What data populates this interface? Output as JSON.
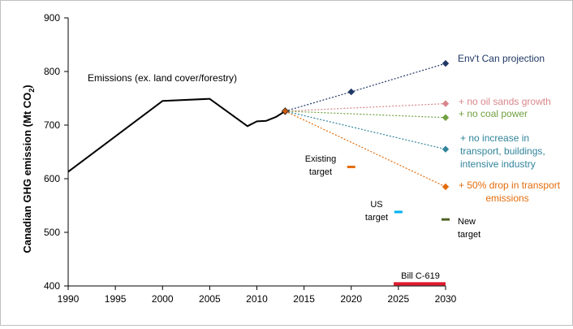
{
  "chart_data": {
    "type": "line",
    "xlabel": "",
    "ylabel": "Canadian GHG emission (Mt CO",
    "ylabel_sub": "2",
    "ylabel_end": ")",
    "xlim": [
      1990,
      2030
    ],
    "ylim": [
      400,
      900
    ],
    "x_ticks": [
      1990,
      1995,
      2000,
      2005,
      2010,
      2015,
      2020,
      2025,
      2030
    ],
    "y_ticks": [
      400,
      500,
      600,
      700,
      800,
      900
    ],
    "grid": false,
    "historical": {
      "label": "Emissions  (ex. land cover/forestry)",
      "color": "#000000",
      "points": [
        [
          1990,
          613
        ],
        [
          2000,
          745
        ],
        [
          2005,
          749
        ],
        [
          2009,
          698
        ],
        [
          2010,
          707
        ],
        [
          2011,
          708
        ],
        [
          2012,
          715
        ],
        [
          2013,
          726
        ]
      ]
    },
    "projections": [
      {
        "label": "Env't Can projection",
        "color": "#1f3864",
        "start": [
          2013,
          726
        ],
        "points": [
          [
            2020,
            762
          ],
          [
            2030,
            815
          ]
        ]
      },
      {
        "label": "+ no oil  sands growth",
        "color": "#d9868a",
        "start": [
          2013,
          726
        ],
        "points": [
          [
            2030,
            740
          ]
        ]
      },
      {
        "label": "+ no coal power",
        "color": "#70a040",
        "start": [
          2013,
          726
        ],
        "points": [
          [
            2030,
            714
          ]
        ]
      },
      {
        "label": "+ no increase in transport, buildings, intensive industry",
        "label_lines": [
          "+ no increase in",
          "transport, buildings,",
          "intensive industry"
        ],
        "color": "#31849b",
        "start": [
          2013,
          726
        ],
        "points": [
          [
            2030,
            655
          ]
        ]
      },
      {
        "label": "+ 50% drop in transport emissions",
        "label_lines": [
          "+ 50% drop in transport",
          "emissions"
        ],
        "color": "#e46c0a",
        "start": [
          2013,
          726
        ],
        "points": [
          [
            2030,
            585
          ]
        ]
      }
    ],
    "targets": [
      {
        "label": "Existing target",
        "label_lines": [
          "Existing",
          "target"
        ],
        "x": 2020,
        "y": 622,
        "color": "#e46c0a"
      },
      {
        "label": "US target",
        "label_lines": [
          "US",
          "target"
        ],
        "x": 2025,
        "y": 538,
        "color": "#00b0f0"
      },
      {
        "label": "New target",
        "label_lines": [
          "New",
          "target"
        ],
        "x": 2030,
        "y": 524,
        "color": "#4f6228"
      },
      {
        "label": "Bill C-619",
        "label_lines": [
          "Bill C-619"
        ],
        "x_start": 2024.5,
        "x_end": 2030,
        "y": 404,
        "color": "#e0182d"
      }
    ],
    "text_color": "#000000"
  }
}
